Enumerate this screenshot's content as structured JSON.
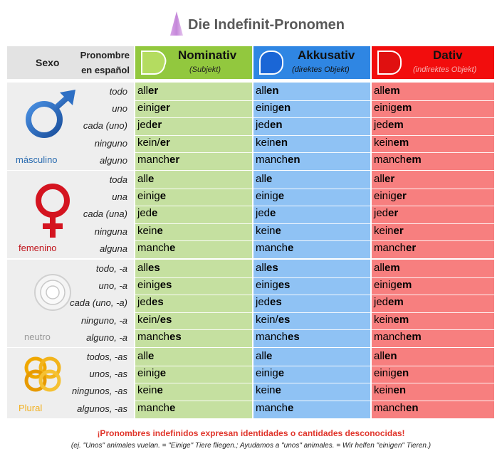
{
  "title": "Die Indefinit-Pronomen",
  "header": {
    "sexo": "Sexo",
    "pronombre_line1": "Pronombre",
    "pronombre_line2": "en español",
    "cases": [
      {
        "name": "Nominativ",
        "sub": "(Subjekt)",
        "color": "#92c83e",
        "icon": "green-speech-bubble-icon"
      },
      {
        "name": "Akkusativ",
        "sub": "(direktes Objekt)",
        "color": "#2f86e3",
        "icon": "blue-speech-bubble-icon"
      },
      {
        "name": "Dativ",
        "sub": "(indirektes Objekt)",
        "color": "#f20d0d",
        "icon": "red-speech-bubble-icon"
      }
    ]
  },
  "groups": [
    {
      "label": "másculino",
      "label_color": "#2b6cb0",
      "icon": "male-symbol-icon",
      "rows": [
        {
          "es": "todo",
          "nom": [
            "all",
            "er"
          ],
          "akk": [
            "all",
            "en"
          ],
          "dat": [
            "all",
            "em"
          ]
        },
        {
          "es": "uno",
          "nom": [
            "einig",
            "er"
          ],
          "akk": [
            "einig",
            "en"
          ],
          "dat": [
            "einig",
            "em"
          ]
        },
        {
          "es": "cada (uno)",
          "nom": [
            "jed",
            "er"
          ],
          "akk": [
            "jed",
            "en"
          ],
          "dat": [
            "jed",
            "em"
          ]
        },
        {
          "es": "ninguno",
          "nom": [
            "kein/",
            "er"
          ],
          "akk": [
            "kein",
            "en"
          ],
          "dat": [
            "kein",
            "em"
          ]
        },
        {
          "es": "alguno",
          "nom": [
            "manch",
            "er"
          ],
          "akk": [
            "manch",
            "en"
          ],
          "dat": [
            "manch",
            "em"
          ]
        }
      ]
    },
    {
      "label": "femenino",
      "label_color": "#c0141c",
      "icon": "female-symbol-icon",
      "rows": [
        {
          "es": "toda",
          "nom": [
            "all",
            "e"
          ],
          "akk": [
            "all",
            "e"
          ],
          "dat": [
            "all",
            "er"
          ]
        },
        {
          "es": "una",
          "nom": [
            "einig",
            "e"
          ],
          "akk": [
            "einig",
            "e"
          ],
          "dat": [
            "einig",
            "er"
          ]
        },
        {
          "es": "cada (una)",
          "nom": [
            "jed",
            "e"
          ],
          "akk": [
            "jed",
            "e"
          ],
          "dat": [
            "jed",
            "er"
          ]
        },
        {
          "es": "ninguna",
          "nom": [
            "kein",
            "e"
          ],
          "akk": [
            "kein",
            "e"
          ],
          "dat": [
            "kein",
            "er"
          ]
        },
        {
          "es": "alguna",
          "nom": [
            "manch",
            "e"
          ],
          "akk": [
            "manch",
            "e"
          ],
          "dat": [
            "manch",
            "er"
          ]
        }
      ]
    },
    {
      "label": "neutro",
      "label_color": "#9a9a9a",
      "icon": "neutral-circle-icon",
      "rows": [
        {
          "es": "todo, -a",
          "nom": [
            "all",
            "es"
          ],
          "akk": [
            "all",
            "es"
          ],
          "dat": [
            "all",
            "em"
          ]
        },
        {
          "es": "uno, -a",
          "nom": [
            "einig",
            "es"
          ],
          "akk": [
            "einig",
            "es"
          ],
          "dat": [
            "einig",
            "em"
          ]
        },
        {
          "es": "cada (uno, -a)",
          "nom": [
            "jed",
            "es"
          ],
          "akk": [
            "jed",
            "es"
          ],
          "dat": [
            "jed",
            "em"
          ]
        },
        {
          "es": "ninguno, -a",
          "nom": [
            "kein/",
            "es"
          ],
          "akk": [
            "kein/",
            "es"
          ],
          "dat": [
            "kein",
            "em"
          ]
        },
        {
          "es": "alguno, -a",
          "nom": [
            "manch",
            "es"
          ],
          "akk": [
            "manch",
            "es"
          ],
          "dat": [
            "manch",
            "em"
          ]
        }
      ]
    },
    {
      "label": "Plural",
      "label_color": "#f2b01e",
      "icon": "plural-rings-icon",
      "rows": [
        {
          "es": "todos, -as",
          "nom": [
            "all",
            "e"
          ],
          "akk": [
            "all",
            "e"
          ],
          "dat": [
            "all",
            "en"
          ]
        },
        {
          "es": "unos, -as",
          "nom": [
            "einig",
            "e"
          ],
          "akk": [
            "einig",
            "e"
          ],
          "dat": [
            "einig",
            "en"
          ]
        },
        {
          "es": "ningunos, -as",
          "nom": [
            "kein",
            "e"
          ],
          "akk": [
            "kein",
            "e"
          ],
          "dat": [
            "kein",
            "en"
          ]
        },
        {
          "es": "algunos, -as",
          "nom": [
            "manch",
            "e"
          ],
          "akk": [
            "manch",
            "e"
          ],
          "dat": [
            "manch",
            "en"
          ]
        }
      ]
    }
  ],
  "colors": {
    "nom_bg": "#c5e0a0",
    "akk_bg": "#8fc2f4",
    "dat_bg": "#f77f7f",
    "left_bg": "#eeeeee"
  },
  "footer": {
    "line1": "¡Pronombres indefinidos expresan identidades o cantidades desconocidas!",
    "line2": "(ej. \"Unos\" animales vuelan. = \"Einige\" Tiere fliegen.; Ayudamos a \"unos\" animales. = Wir helfen \"einigen\" Tieren.)"
  }
}
